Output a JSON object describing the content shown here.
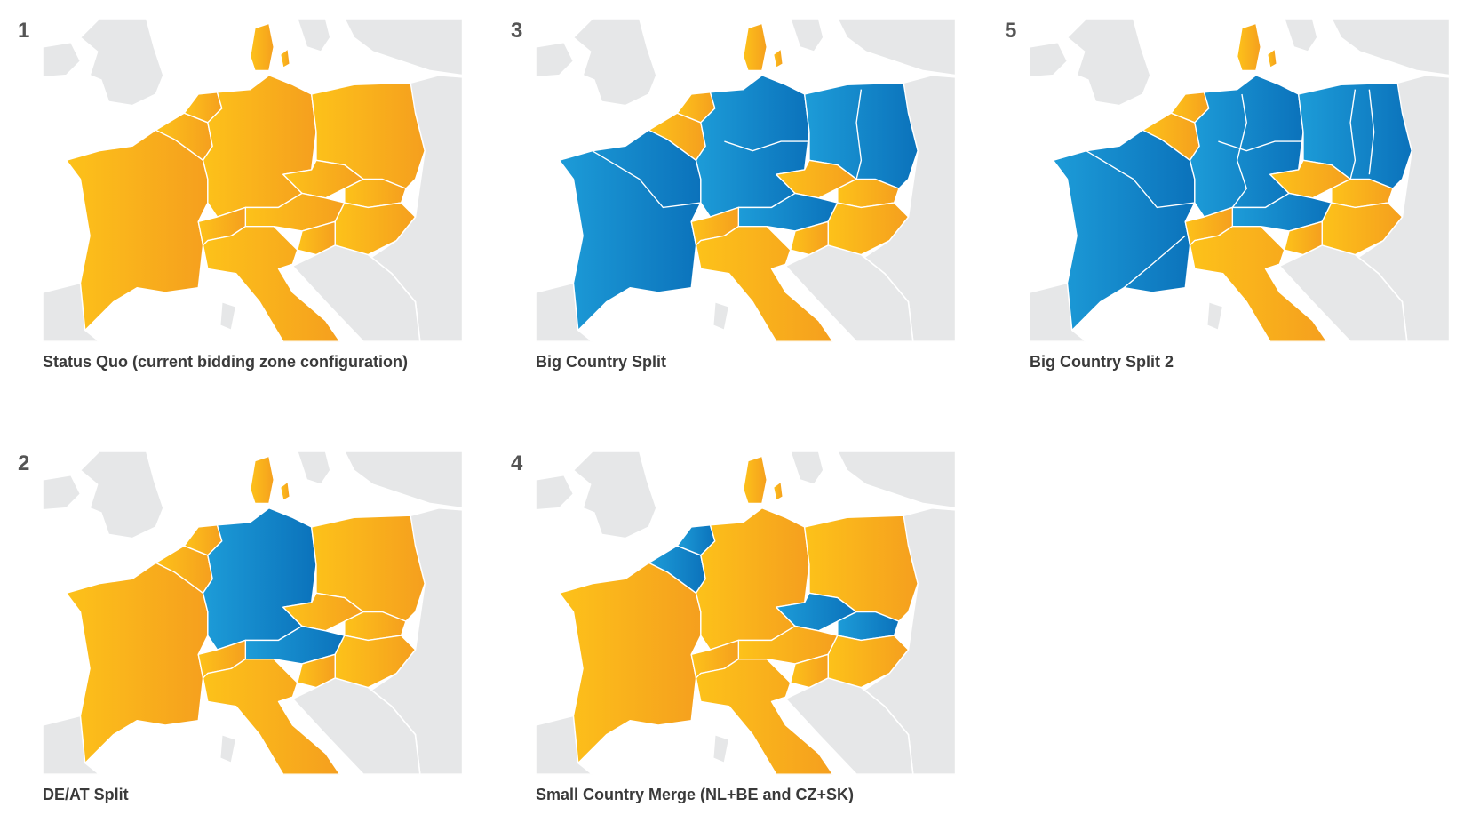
{
  "panels": [
    {
      "number": "1",
      "caption": "Status Quo (current bidding zone configuration)"
    },
    {
      "number": "3",
      "caption": "Big Country Split"
    },
    {
      "number": "5",
      "caption": "Big Country Split 2"
    },
    {
      "number": "2",
      "caption": "DE/AT Split"
    },
    {
      "number": "4",
      "caption": "Small Country Merge (NL+BE and CZ+SK)"
    }
  ]
}
